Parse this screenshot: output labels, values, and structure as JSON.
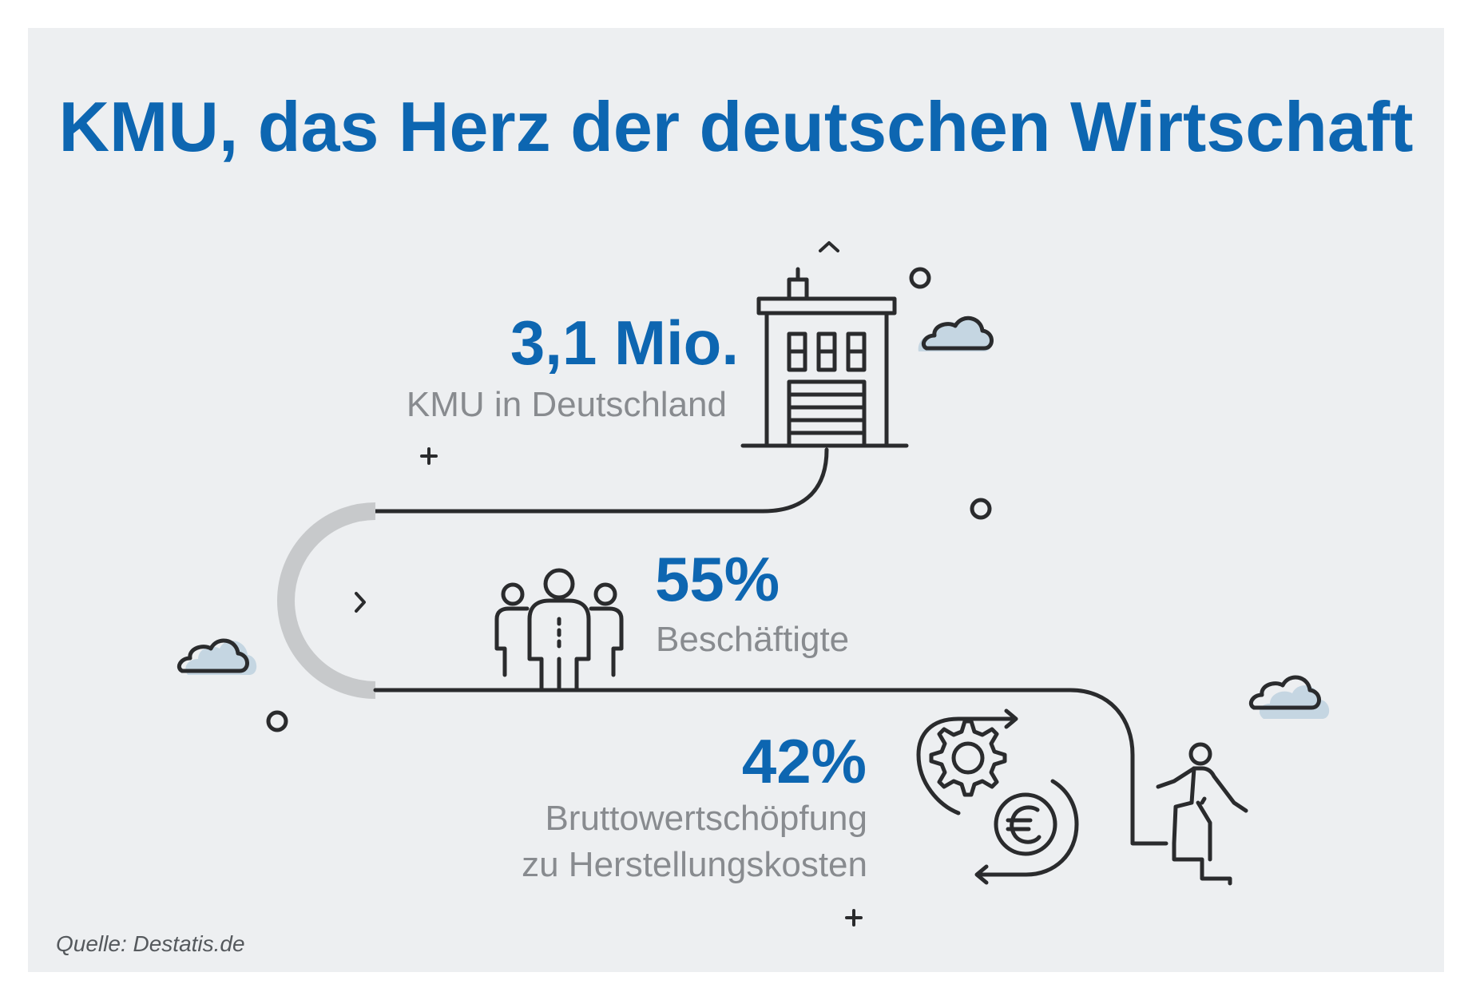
{
  "title": "KMU, das Herz der deutschen Wirtschaft",
  "stats": [
    {
      "value": "3,1 Mio.",
      "label": "KMU in Deutschland"
    },
    {
      "value": "55%",
      "label": "Beschäftigte"
    },
    {
      "value": "42%",
      "label_line1": "Bruttowertschöpfung",
      "label_line2": "zu Herstellungskosten"
    }
  ],
  "source": "Quelle: Destatis.de",
  "colors": {
    "accent": "#0d66b1",
    "label_gray": "#888b8f",
    "panel_bg": "#edeff1",
    "line": "#2a2b2d",
    "arc": "#c7c9cb",
    "cloud": "#c5d6e2"
  },
  "icons": [
    "building-icon",
    "people-icon",
    "gear-euro-cycle-icon",
    "climbing-person-icon",
    "cloud-icon",
    "circle-icon",
    "plus-icon",
    "chevron-icon"
  ]
}
